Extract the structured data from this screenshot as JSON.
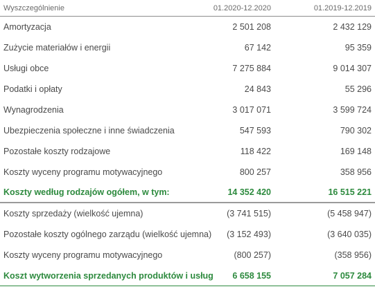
{
  "header": {
    "label": "Wyszczególnienie",
    "col1": "01.2020-12.2020",
    "col2": "01.2019-12.2019"
  },
  "rows": [
    {
      "label": "Amortyzacja",
      "v1": "2 501 208",
      "v2": "2 432 129"
    },
    {
      "label": "Zużycie materiałów i energii",
      "v1": "67 142",
      "v2": "95 359"
    },
    {
      "label": "Usługi obce",
      "v1": "7 275 884",
      "v2": "9 014 307"
    },
    {
      "label": "Podatki i opłaty",
      "v1": "24 843",
      "v2": "55 296"
    },
    {
      "label": "Wynagrodzenia",
      "v1": "3 017 071",
      "v2": "3 599 724"
    },
    {
      "label": "Ubezpieczenia społeczne i inne świadczenia",
      "v1": "547 593",
      "v2": "790 302"
    },
    {
      "label": "Pozostałe koszty rodzajowe",
      "v1": "118 422",
      "v2": "169 148"
    },
    {
      "label": "Koszty wyceny programu motywacyjnego",
      "v1": "800 257",
      "v2": "358 956"
    },
    {
      "label": "Koszty według rodzajów ogółem, w tym:",
      "v1": "14 352 420",
      "v2": "16 515 221"
    },
    {
      "label": "Koszty sprzedaży (wielkość ujemna)",
      "v1": "(3 741 515)",
      "v2": "(5 458 947)"
    },
    {
      "label": "Pozostałe koszty ogólnego zarządu (wielkość ujemna)",
      "v1": "(3 152 493)",
      "v2": "(3 640 035)"
    },
    {
      "label": "Koszty wyceny programu motywacyjnego",
      "v1": "(800 257)",
      "v2": "(358 956)"
    },
    {
      "label": "Koszt wytworzenia sprzedanych produktów i usług",
      "v1": "6 658 155",
      "v2": "7 057 284"
    }
  ],
  "colors": {
    "accent": "#2d8a3e",
    "text": "#4a4a4a"
  }
}
